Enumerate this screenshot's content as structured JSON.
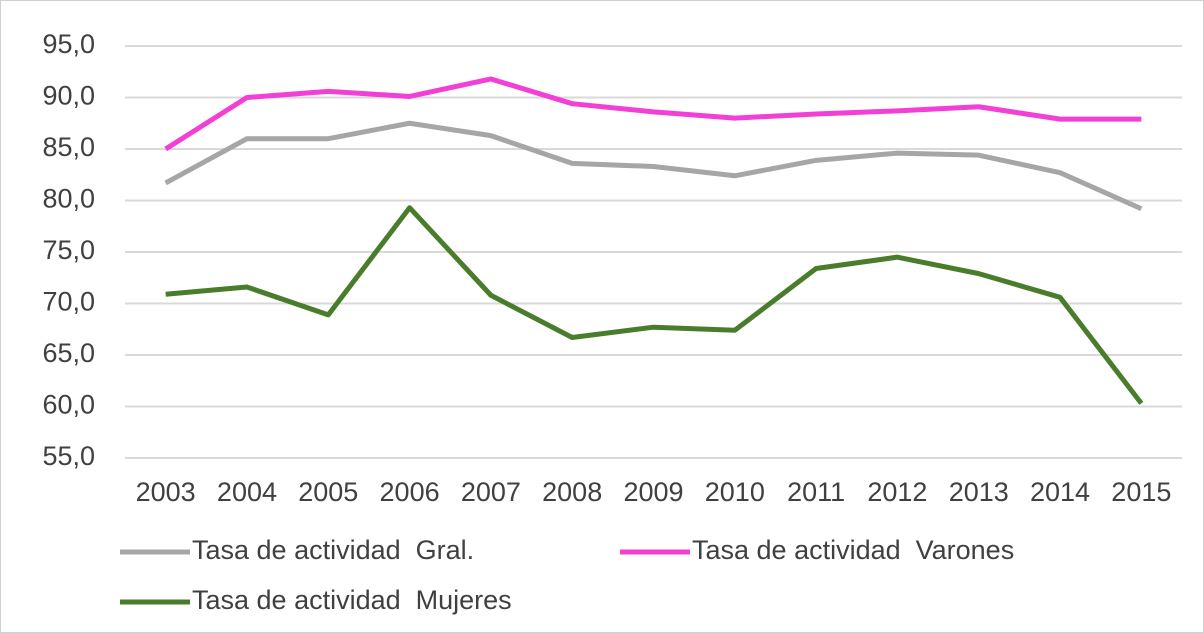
{
  "chart_data": {
    "type": "line",
    "categories": [
      "2003",
      "2004",
      "2005",
      "2006",
      "2007",
      "2008",
      "2009",
      "2010",
      "2011",
      "2012",
      "2013",
      "2014",
      "2015"
    ],
    "series": [
      {
        "name": "Tasa de actividad  Gral.",
        "color": "#a6a6a6",
        "values": [
          81.7,
          86.0,
          86.0,
          87.5,
          86.3,
          83.6,
          83.3,
          82.4,
          83.9,
          84.6,
          84.4,
          82.7,
          79.2
        ]
      },
      {
        "name": "Tasa de actividad  Varones",
        "color": "#f23fd6",
        "values": [
          85.0,
          90.0,
          90.6,
          90.1,
          91.8,
          89.4,
          88.6,
          88.0,
          88.4,
          88.7,
          89.1,
          87.9,
          87.9
        ]
      },
      {
        "name": "Tasa de actividad  Mujeres",
        "color": "#4a7d2b",
        "values": [
          70.9,
          71.6,
          68.9,
          79.3,
          70.8,
          66.7,
          67.7,
          67.4,
          73.4,
          74.5,
          72.9,
          70.6,
          60.3
        ]
      }
    ],
    "ylim": [
      55,
      95
    ],
    "yticks": [
      {
        "value": 55,
        "label": "55,0"
      },
      {
        "value": 60,
        "label": "60,0"
      },
      {
        "value": 65,
        "label": "65,0"
      },
      {
        "value": 70,
        "label": "70,0"
      },
      {
        "value": 75,
        "label": "75,0"
      },
      {
        "value": 80,
        "label": "80,0"
      },
      {
        "value": 85,
        "label": "85,0"
      },
      {
        "value": 90,
        "label": "90,0"
      },
      {
        "value": 95,
        "label": "95,0"
      }
    ],
    "grid": true,
    "legend": "bottom"
  }
}
